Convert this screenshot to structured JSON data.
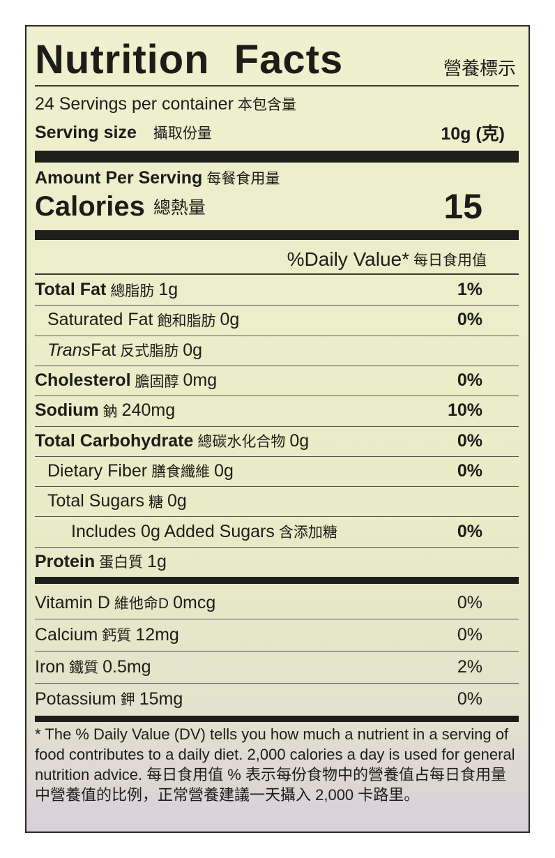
{
  "title": "Nutrition Facts",
  "title_zh": "營養標示",
  "servings": {
    "text": "24 Servings per container",
    "zh": "本包含量"
  },
  "serving_size": {
    "label": "Serving size",
    "zh": "攝取份量",
    "value": "10g (克)"
  },
  "amount": {
    "label": "Amount Per Serving",
    "zh": "每餐食用量"
  },
  "calories": {
    "label": "Calories",
    "zh": "總熱量",
    "value": "15"
  },
  "dv_header": {
    "label": "%Daily Value*",
    "zh": "每日食用值"
  },
  "nutrients": [
    {
      "name": "Total Fat",
      "zh": "總脂肪",
      "amount": "1g",
      "dv": "1%"
    },
    {
      "name": "Saturated  Fat",
      "zh": "飽和脂肪",
      "amount": "0g",
      "dv": "0%"
    },
    {
      "name": "Trans",
      "name2": " Fat",
      "zh": "反式脂肪",
      "amount": "0g",
      "dv": ""
    },
    {
      "name": "Cholesterol",
      "zh": "膽固醇",
      "amount": "0mg",
      "dv": "0%"
    },
    {
      "name": "Sodium",
      "zh": "鈉",
      "amount": "240mg",
      "dv": "10%"
    },
    {
      "name": "Total Carbohydrate",
      "zh": "總碳水化合物",
      "amount": "0g",
      "dv": "0%"
    },
    {
      "name": "Dietary Fiber",
      "zh": "膳食纖維",
      "amount": "0g",
      "dv": "0%"
    },
    {
      "name": "Total Sugars",
      "zh": "糖",
      "amount": "0g",
      "dv": ""
    },
    {
      "name": "Includes  0g  Added Sugars",
      "zh": "含添加糖",
      "amount": "",
      "dv": "0%"
    },
    {
      "name": "Protein",
      "zh": "蛋白質",
      "amount": "1g",
      "dv": ""
    }
  ],
  "vitamins": [
    {
      "name": "Vitamin  D",
      "zh": "維他命D",
      "amount": "0mcg",
      "dv": "0%"
    },
    {
      "name": "Calcium",
      "zh": "鈣質",
      "amount": "12mg",
      "dv": "0%"
    },
    {
      "name": "Iron",
      "zh": "鐵質",
      "amount": "0.5mg",
      "dv": "2%"
    },
    {
      "name": "Potassium",
      "zh": "鉀",
      "amount": "15mg",
      "dv": "0%"
    }
  ],
  "footnote": "* The % Daily Value (DV) tells you how much a nutrient in a serving of food contributes to a daily diet. 2,000 calories a day is used for general nutrition advice. 每日食用值 % 表示每份食物中的營養值占每日食用量中營養值的比例，正常營養建議一天攝入 2,000 卡路里。"
}
